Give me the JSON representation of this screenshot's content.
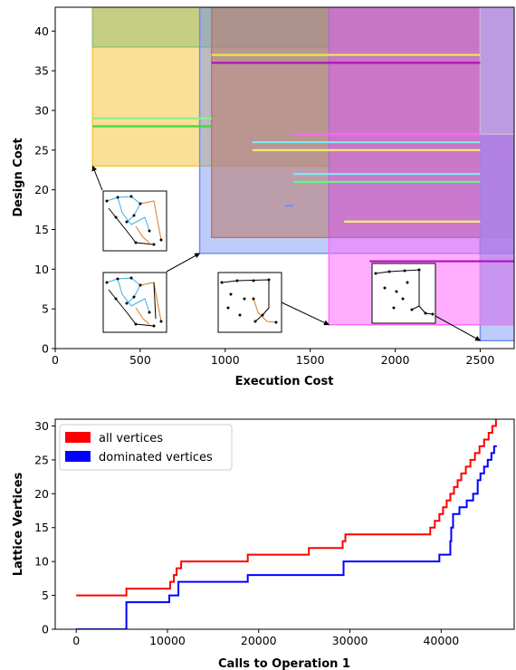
{
  "chart_data": [
    {
      "type": "area",
      "xlabel": "Execution Cost",
      "ylabel": "Design Cost",
      "xlim": [
        0,
        2700
      ],
      "ylim": [
        0,
        43
      ],
      "xticks": [
        0,
        500,
        1000,
        1500,
        2000,
        2500
      ],
      "yticks": [
        0,
        5,
        10,
        15,
        20,
        25,
        30,
        35,
        40
      ],
      "regions": [
        {
          "x0": 220,
          "y0": 23,
          "color": "#f5c542",
          "opacity": 0.55
        },
        {
          "x0": 220,
          "y0": 38,
          "color": "#9bbf72",
          "opacity": 0.55
        },
        {
          "x0": 850,
          "y0": 12,
          "color": "#6f8ff5",
          "opacity": 0.45
        },
        {
          "x0": 920,
          "y0": 14,
          "color": "#b9796a",
          "opacity": 0.55
        },
        {
          "x0": 1610,
          "y0": 3,
          "color": "#ff6bff",
          "opacity": 0.55
        },
        {
          "x0": 1610,
          "y0": 14,
          "color": "#b06fc2",
          "opacity": 0.45
        },
        {
          "x0": 2500,
          "y0": 1,
          "color": "#6f8ff5",
          "opacity": 0.45
        },
        {
          "x0": 2500,
          "y0": 3,
          "color": "#d28be6",
          "opacity": 0.5
        },
        {
          "x0": 2500,
          "y0": 12,
          "color": "#a67de6",
          "opacity": 0.45
        },
        {
          "x0": 2500,
          "y0": 27,
          "color": "#c9b3e0",
          "opacity": 0.5
        }
      ],
      "segments": [
        {
          "x0": 920,
          "x1": 2500,
          "y": 37,
          "color": "#f0e84a"
        },
        {
          "x0": 920,
          "x1": 2500,
          "y": 36,
          "color": "#b013b8"
        },
        {
          "x0": 220,
          "x1": 920,
          "y": 29,
          "color": "#8ef08e"
        },
        {
          "x0": 220,
          "x1": 920,
          "y": 28,
          "color": "#3ed83e"
        },
        {
          "x0": 1400,
          "x1": 2500,
          "y": 27,
          "color": "#ff63ff"
        },
        {
          "x0": 1160,
          "x1": 2500,
          "y": 26,
          "color": "#7fe8f5"
        },
        {
          "x0": 1160,
          "x1": 2500,
          "y": 25,
          "color": "#f3ef7a"
        },
        {
          "x0": 1400,
          "x1": 2500,
          "y": 22,
          "color": "#7fe8f5"
        },
        {
          "x0": 1400,
          "x1": 2500,
          "y": 21,
          "color": "#6ef08a"
        },
        {
          "x0": 1350,
          "x1": 1400,
          "y": 18,
          "color": "#6f8ff5"
        },
        {
          "x0": 1700,
          "x1": 2500,
          "y": 16,
          "color": "#f3ef7a"
        },
        {
          "x0": 1850,
          "x1": 2700,
          "y": 11,
          "color": "#b013b8"
        }
      ]
    },
    {
      "type": "line",
      "xlabel": "Calls to Operation 1",
      "ylabel": "Lattice Vertices",
      "xlim": [
        -2300,
        48000
      ],
      "ylim": [
        0,
        31
      ],
      "xticks": [
        0,
        10000,
        20000,
        30000,
        40000
      ],
      "yticks": [
        0,
        5,
        10,
        15,
        20,
        25,
        30
      ],
      "legend_position": "top-left",
      "series": [
        {
          "name": "all vertices",
          "color": "#ff0000",
          "x": [
            0,
            5500,
            10300,
            10700,
            11000,
            11500,
            18800,
            19000,
            25500,
            29200,
            29500,
            38800,
            39300,
            39800,
            40200,
            40600,
            41000,
            41400,
            41800,
            42200,
            42700,
            43200,
            43700,
            44200,
            44700,
            45200,
            45600,
            46000,
            46100
          ],
          "y": [
            5,
            6,
            7,
            8,
            9,
            10,
            11,
            11,
            12,
            13,
            14,
            15,
            16,
            17,
            18,
            19,
            20,
            21,
            22,
            23,
            24,
            25,
            26,
            27,
            28,
            29,
            30,
            31,
            31
          ]
        },
        {
          "name": "dominated vertices",
          "color": "#0000ff",
          "x": [
            0,
            5500,
            10200,
            11200,
            18800,
            29300,
            39800,
            41000,
            41100,
            41300,
            42000,
            42800,
            43500,
            44000,
            44300,
            44700,
            45100,
            45500,
            45800,
            46100
          ],
          "y": [
            0,
            4,
            5,
            7,
            8,
            10,
            11,
            13,
            15,
            17,
            18,
            19,
            20,
            22,
            23,
            24,
            25,
            26,
            27,
            27
          ]
        }
      ]
    }
  ],
  "insets": [
    {
      "id": "inset-1",
      "label": "graph-thumbnail",
      "points_to": [
        220,
        23
      ]
    },
    {
      "id": "inset-2",
      "label": "graph-thumbnail",
      "points_to": [
        850,
        12
      ]
    },
    {
      "id": "inset-3",
      "label": "graph-thumbnail",
      "points_to": [
        1610,
        3
      ]
    },
    {
      "id": "inset-4",
      "label": "graph-thumbnail",
      "points_to": [
        2500,
        1
      ]
    }
  ]
}
